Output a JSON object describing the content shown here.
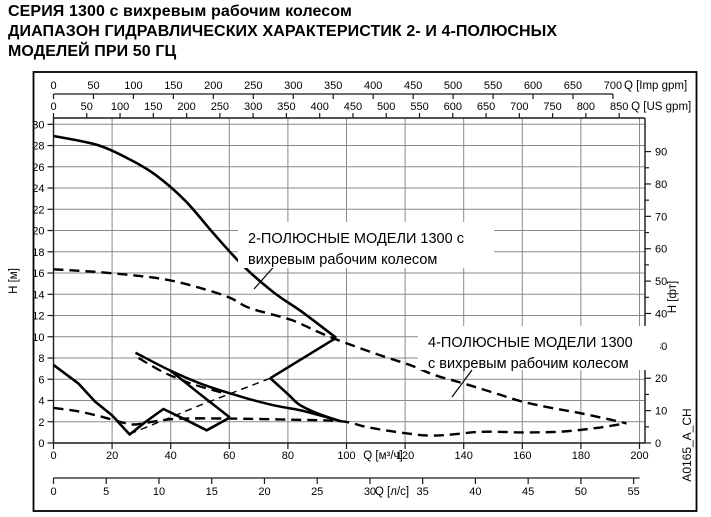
{
  "titles": {
    "line1": "СЕРИЯ 1300 с вихревым рабочим колесом",
    "line2": "ДИАПАЗОН ГИДРАВЛИЧЕСКИХ ХАРАКТЕРИСТИК 2- И 4-ПОЛЮСНЫХ",
    "line3": "МОДЕЛЕЙ ПРИ 50 ГЦ"
  },
  "side_code": "A0165_A_CH",
  "colors": {
    "curve": "#000000",
    "grid": "#8a8a8a",
    "axis": "#1a1a1a",
    "background": "#ffffff"
  },
  "chart_data": {
    "type": "line",
    "title": "",
    "grid": "on",
    "x_unit_main": "м³/ч",
    "y_unit_main": "м",
    "xlim_m3h": [
      0,
      200
    ],
    "ylim_m": [
      0,
      30
    ],
    "axes": {
      "top_imp": {
        "title": "Q [Imp gpm]",
        "ticks": [
          0,
          50,
          100,
          150,
          200,
          250,
          300,
          350,
          400,
          450,
          500,
          550,
          600,
          650,
          700
        ]
      },
      "top_us": {
        "title": "Q [US gpm]",
        "ticks": [
          0,
          50,
          100,
          150,
          200,
          250,
          300,
          350,
          400,
          450,
          500,
          550,
          600,
          650,
          700,
          750,
          800,
          850
        ]
      },
      "bottom_m3h": {
        "title": "Q [м³/ч]",
        "ticks": [
          0,
          20,
          40,
          60,
          80,
          100,
          120,
          140,
          160,
          180,
          200
        ]
      },
      "bottom_ls": {
        "title": "Q [л/с]",
        "ticks": [
          0,
          5,
          10,
          15,
          20,
          25,
          30,
          35,
          40,
          45,
          50,
          55
        ]
      },
      "left_m": {
        "title": "H [м]",
        "ticks": [
          0,
          2,
          4,
          6,
          8,
          10,
          12,
          14,
          16,
          18,
          20,
          22,
          24,
          26,
          28,
          30
        ]
      },
      "right_ft": {
        "title": "H [фт]",
        "ticks": [
          0,
          10,
          20,
          30,
          40,
          50,
          60,
          70,
          80,
          90
        ],
        "minor_step": 5
      }
    },
    "annotations": [
      {
        "id": "label-2pole",
        "lines": [
          "2-ПОЛЮСНЫЕ МОДЕЛИ 1300 с",
          "вихревым рабочим колесом"
        ]
      },
      {
        "id": "label-4pole",
        "lines": [
          "4-ПОЛЮСНЫЕ МОДЕЛИ 1300",
          "с вихревым рабочим колесом"
        ]
      }
    ],
    "series": [
      {
        "id": "pole2-top-curve",
        "group": "2-pole",
        "style": "solid",
        "width": 2.6,
        "smooth": true,
        "points": [
          [
            0,
            28.9
          ],
          [
            15,
            28.05
          ],
          [
            26,
            26.7
          ],
          [
            35,
            25.2
          ],
          [
            45,
            22.8
          ],
          [
            55,
            19.6
          ],
          [
            65,
            16.6
          ],
          [
            75,
            14.2
          ],
          [
            85,
            12.3
          ],
          [
            96.5,
            9.9
          ]
        ]
      },
      {
        "id": "pole2-tip-upper",
        "group": "2-pole",
        "style": "solid",
        "width": 2.6,
        "smooth": false,
        "points": [
          [
            96.5,
            9.9
          ],
          [
            74,
            6.1
          ]
        ]
      },
      {
        "id": "pole2-tip-lower",
        "group": "2-pole",
        "style": "solid",
        "width": 2.6,
        "smooth": true,
        "points": [
          [
            74,
            6.1
          ],
          [
            80,
            4.6
          ],
          [
            84,
            3.6
          ],
          [
            90,
            2.8
          ],
          [
            98,
            2.05
          ]
        ]
      },
      {
        "id": "pole2-mid-curve",
        "group": "2-pole",
        "style": "solid",
        "width": 2.5,
        "smooth": true,
        "points": [
          [
            28,
            8.5
          ],
          [
            40,
            6.8
          ],
          [
            52,
            5.4
          ],
          [
            66,
            4.2
          ],
          [
            76,
            3.5
          ],
          [
            84,
            3.1
          ],
          [
            91,
            2.6
          ],
          [
            98,
            2.05
          ]
        ]
      },
      {
        "id": "pole2-steep-line",
        "group": "2-pole",
        "style": "solid",
        "width": 2.5,
        "smooth": false,
        "points": [
          [
            40,
            6.8
          ],
          [
            50,
            4.6
          ],
          [
            60.2,
            2.4
          ]
        ]
      },
      {
        "id": "pole2-low-zigzag",
        "group": "2-pole",
        "style": "solid",
        "width": 2.6,
        "smooth": false,
        "points": [
          [
            0,
            7.35
          ],
          [
            8.5,
            5.6
          ],
          [
            14.2,
            3.9
          ],
          [
            20,
            2.6
          ],
          [
            26,
            0.8
          ],
          [
            31,
            1.9
          ],
          [
            37.5,
            3.2
          ],
          [
            45,
            2.2
          ],
          [
            52.3,
            1.2
          ],
          [
            60.2,
            2.4
          ]
        ]
      },
      {
        "id": "pole4-top-curve",
        "group": "4-pole",
        "style": "dashed",
        "width": 2.4,
        "smooth": true,
        "points": [
          [
            0,
            16.35
          ],
          [
            15,
            16.1
          ],
          [
            30,
            15.7
          ],
          [
            40,
            15.3
          ],
          [
            50,
            14.6
          ],
          [
            60,
            13.7
          ],
          [
            67,
            12.7
          ],
          [
            81,
            11.6
          ],
          [
            90,
            10.5
          ],
          [
            97,
            9.7
          ],
          [
            110,
            8.4
          ],
          [
            122,
            7.3
          ],
          [
            130,
            6.4
          ],
          [
            140,
            5.6
          ],
          [
            150,
            4.75
          ],
          [
            160,
            3.9
          ],
          [
            170,
            3.3
          ],
          [
            180,
            2.8
          ],
          [
            190,
            2.2
          ],
          [
            195.5,
            1.85
          ]
        ]
      },
      {
        "id": "pole4-bottom-curve",
        "group": "4-pole",
        "style": "dashed",
        "width": 2.4,
        "smooth": true,
        "points": [
          [
            0,
            3.3
          ],
          [
            8,
            3.0
          ],
          [
            16,
            2.5
          ],
          [
            24,
            1.9
          ],
          [
            28,
            1.75
          ],
          [
            36,
            2.1
          ],
          [
            44,
            2.3
          ],
          [
            60,
            2.3
          ],
          [
            80,
            2.2
          ],
          [
            98,
            2.05
          ],
          [
            107,
            1.5
          ],
          [
            118,
            1.0
          ],
          [
            130,
            0.7
          ],
          [
            146,
            1.05
          ],
          [
            160,
            1.0
          ],
          [
            173,
            1.06
          ],
          [
            185,
            1.4
          ],
          [
            195.5,
            1.85
          ]
        ]
      },
      {
        "id": "pole4-small-top",
        "group": "4-pole",
        "style": "dashed",
        "width": 2.2,
        "smooth": true,
        "points": [
          [
            29,
            8.0
          ],
          [
            38,
            6.6
          ],
          [
            48,
            5.5
          ],
          [
            58,
            4.7
          ]
        ]
      },
      {
        "id": "pole4-min-flow-line",
        "group": "4-pole",
        "style": "dashed",
        "width": 1.4,
        "smooth": false,
        "points": [
          [
            26,
            0.85
          ],
          [
            50,
            3.55
          ],
          [
            74,
            6.1
          ]
        ]
      }
    ]
  }
}
